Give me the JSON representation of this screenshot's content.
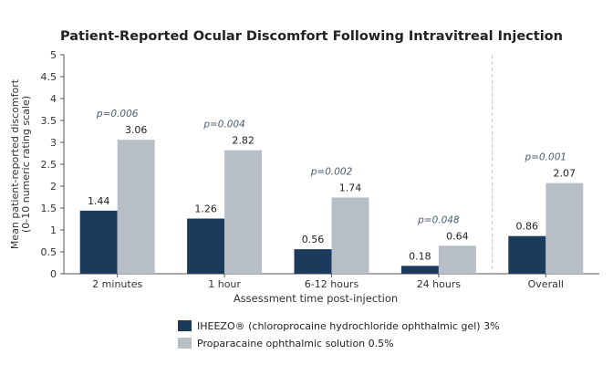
{
  "chart_data": {
    "type": "bar",
    "title": "Patient-Reported Ocular Discomfort Following Intravitreal Injection",
    "xlabel": "Assessment time post-injection",
    "ylabel_lines": [
      "Mean patient-reported discomfort",
      "(0-10 numeric rating scale)"
    ],
    "ylim": [
      0,
      5
    ],
    "yticks": [
      "0",
      "0.5",
      "1",
      "1.5",
      "2",
      "2.5",
      "3",
      "3.5",
      "4",
      "4.5",
      "5"
    ],
    "categories": [
      "2 minutes",
      "1 hour",
      "6-12 hours",
      "24 hours",
      "Overall"
    ],
    "series": [
      {
        "name": "IHEEZO® (chloroprocaine hydrochloride ophthalmic gel) 3%",
        "color": "#1b3a5c",
        "values": [
          1.44,
          1.26,
          0.56,
          0.18,
          0.86
        ],
        "labels": [
          "1.44",
          "1.26",
          "0.56",
          "0.18",
          "0.86"
        ]
      },
      {
        "name": "Proparacaine ophthalmic solution 0.5%",
        "color": "#b8bec5",
        "values": [
          3.06,
          2.82,
          1.74,
          0.64,
          2.07
        ],
        "labels": [
          "3.06",
          "2.82",
          "1.74",
          "0.64",
          "2.07"
        ]
      }
    ],
    "p_values": [
      "p=0.006",
      "p=0.004",
      "p=0.002",
      "p=0.048",
      "p=0.001"
    ],
    "p_color": "#4a5a6e",
    "separator_before_category": 4,
    "grid": false,
    "legend_position": "bottom"
  }
}
